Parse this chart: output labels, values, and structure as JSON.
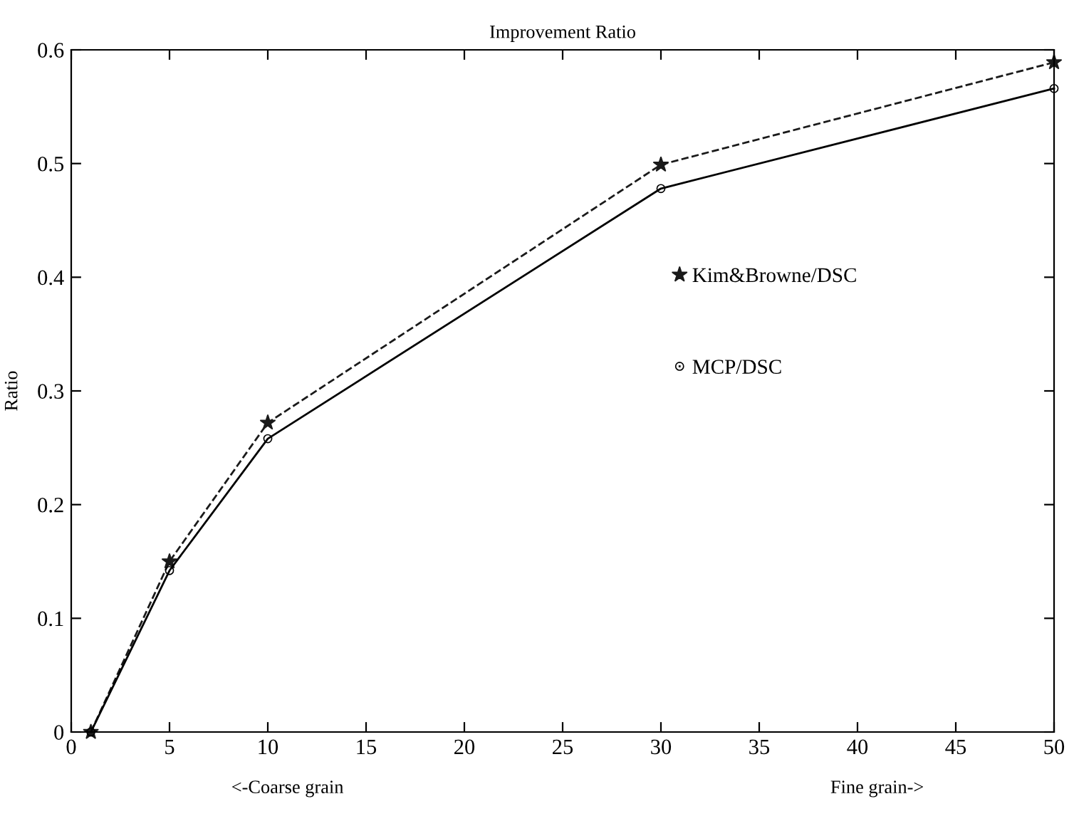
{
  "chart_data": {
    "type": "line",
    "title": "Improvement Ratio",
    "ylabel": "Ratio",
    "annotations": [
      "<-Coarse grain",
      "Fine grain->"
    ],
    "x": [
      1,
      5,
      10,
      30,
      50
    ],
    "series": [
      {
        "name": "Kim&Browne/DSC",
        "color": "#1a1a1a",
        "values": [
          0,
          0.15,
          0.272,
          0.499,
          0.589
        ],
        "marker": "star",
        "line_style": "dashed"
      },
      {
        "name": "MCP/DSC",
        "color": "#000000",
        "values": [
          0,
          0.142,
          0.258,
          0.478,
          0.566
        ],
        "marker": "circle",
        "line_style": "solid"
      }
    ],
    "xlim": [
      0,
      50
    ],
    "xticks": [
      0,
      5,
      10,
      15,
      20,
      25,
      30,
      35,
      40,
      45,
      50
    ],
    "ylim": [
      0,
      0.6
    ],
    "yticks": [
      0,
      0.1,
      0.2,
      0.3,
      0.4,
      0.5,
      0.6
    ],
    "grid": false,
    "legend": "right"
  }
}
